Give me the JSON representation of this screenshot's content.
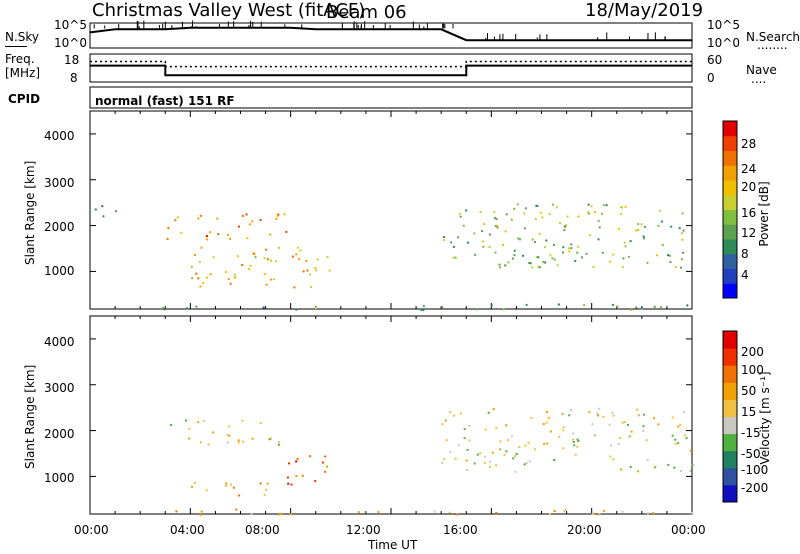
{
  "header": {
    "station": "Christmas Valley West (fitACF)",
    "beam": "Beam 06",
    "date": "18/May/2019"
  },
  "sky_panel": {
    "left_label": "N.Sky",
    "left_ticks": [
      "10^5",
      "10^0"
    ],
    "right_ticks": [
      "10^5",
      "10^0"
    ],
    "right_label": "N.Search",
    "right_line": "........"
  },
  "freq_panel": {
    "left_label_1": "Freq.",
    "left_label_2": "[MHz]",
    "left_ticks": [
      "18",
      "8"
    ],
    "right_ticks": [
      "60",
      "0"
    ],
    "right_label": "Nave",
    "right_line": "...."
  },
  "cpid_panel": {
    "label": "CPID",
    "program": "normal (fast) 151 RF"
  },
  "x_axis": {
    "label": "Time UT",
    "ticks": [
      "00:00",
      "04:00",
      "08:00",
      "12:00",
      "16:00",
      "20:00",
      "00:00"
    ]
  },
  "power_panel": {
    "ylabel": "Slant Range [km]",
    "yticks": [
      "4000",
      "3000",
      "2000",
      "1000"
    ],
    "colorbar_label": "Power [dB]",
    "colorbar_ticks": [
      "28",
      "24",
      "20",
      "16",
      "12",
      "8",
      "4"
    ],
    "colors": [
      "#0000ff",
      "#2040c0",
      "#3060a0",
      "#2e8b57",
      "#5ca050",
      "#80c040",
      "#c8d030",
      "#f0c000",
      "#f0a000",
      "#f07000",
      "#f04000",
      "#e00000"
    ]
  },
  "velocity_panel": {
    "ylabel": "Slant Range [km]",
    "yticks": [
      "4000",
      "3000",
      "2000",
      "1000"
    ],
    "colorbar_label": "Velocity [m s⁻¹]",
    "colorbar_ticks": [
      "200",
      "100",
      "50",
      "15",
      "-15",
      "-50",
      "-100",
      "-200"
    ],
    "colors": [
      "#1010c0",
      "#3050a0",
      "#208060",
      "#50b040",
      "#c8c8c0",
      "#f0c040",
      "#f0a000",
      "#f07000",
      "#f03000",
      "#e00000"
    ]
  },
  "chart_data": [
    {
      "type": "line",
      "title": "N.Sky / N.Search",
      "x_unit": "hours UT",
      "series": [
        {
          "name": "N.Sky",
          "x": [
            0,
            1,
            2,
            3,
            4,
            5,
            6,
            7,
            8,
            9,
            10,
            11,
            12,
            13,
            14,
            15,
            16,
            17,
            18,
            19,
            20,
            21,
            22,
            23,
            24
          ],
          "values": [
            10,
            12,
            12,
            12,
            13,
            13,
            13,
            13,
            13,
            12,
            12,
            12,
            12,
            12,
            12,
            5,
            5,
            5,
            5,
            5,
            5,
            5,
            5,
            5,
            5
          ]
        }
      ]
    },
    {
      "type": "line",
      "title": "Freq. / Nave",
      "x_unit": "hours UT",
      "ylim": [
        8,
        18
      ],
      "series": [
        {
          "name": "Freq.",
          "x": [
            0,
            3,
            3,
            15,
            15,
            24
          ],
          "values": [
            14,
            14,
            10,
            10,
            14,
            14
          ]
        },
        {
          "name": "Nave",
          "x": [
            0,
            3,
            3,
            15,
            15,
            24
          ],
          "values": [
            44,
            44,
            33,
            33,
            44,
            44
          ]
        }
      ]
    },
    {
      "type": "heatmap",
      "title": "Power [dB]",
      "xlim": [
        0,
        24
      ],
      "ylim": [
        180,
        4500
      ],
      "clim": [
        0,
        30
      ],
      "regions": [
        {
          "t0": 3.0,
          "t1": 7.8,
          "r0": 1700,
          "r1": 2300,
          "value": 24
        },
        {
          "t0": 4.0,
          "t1": 9.6,
          "r0": 650,
          "r1": 1600,
          "value": 20
        },
        {
          "t0": 0.0,
          "t1": 1.2,
          "r0": 2200,
          "r1": 2600,
          "value": 8
        },
        {
          "t0": 14.0,
          "t1": 24.0,
          "r0": 1100,
          "r1": 2500,
          "value": 14
        },
        {
          "t0": 2.5,
          "t1": 24.0,
          "r0": 180,
          "r1": 300,
          "value": 10
        }
      ]
    },
    {
      "type": "heatmap",
      "title": "Velocity [m s⁻¹]",
      "xlim": [
        0,
        24
      ],
      "ylim": [
        180,
        4500
      ],
      "clim": [
        -250,
        250
      ],
      "regions": [
        {
          "t0": 3.0,
          "t1": 7.8,
          "r0": 1700,
          "r1": 2300,
          "value": 0
        },
        {
          "t0": 7.5,
          "t1": 9.6,
          "r0": 800,
          "r1": 1500,
          "value": -150
        },
        {
          "t0": 3.5,
          "t1": 7.5,
          "r0": 600,
          "r1": 900,
          "value": -60
        },
        {
          "t0": 14.0,
          "t1": 24.0,
          "r0": 1100,
          "r1": 2500,
          "value": 0
        },
        {
          "t0": 2.5,
          "t1": 24.0,
          "r0": 180,
          "r1": 300,
          "value": -40
        }
      ]
    }
  ]
}
